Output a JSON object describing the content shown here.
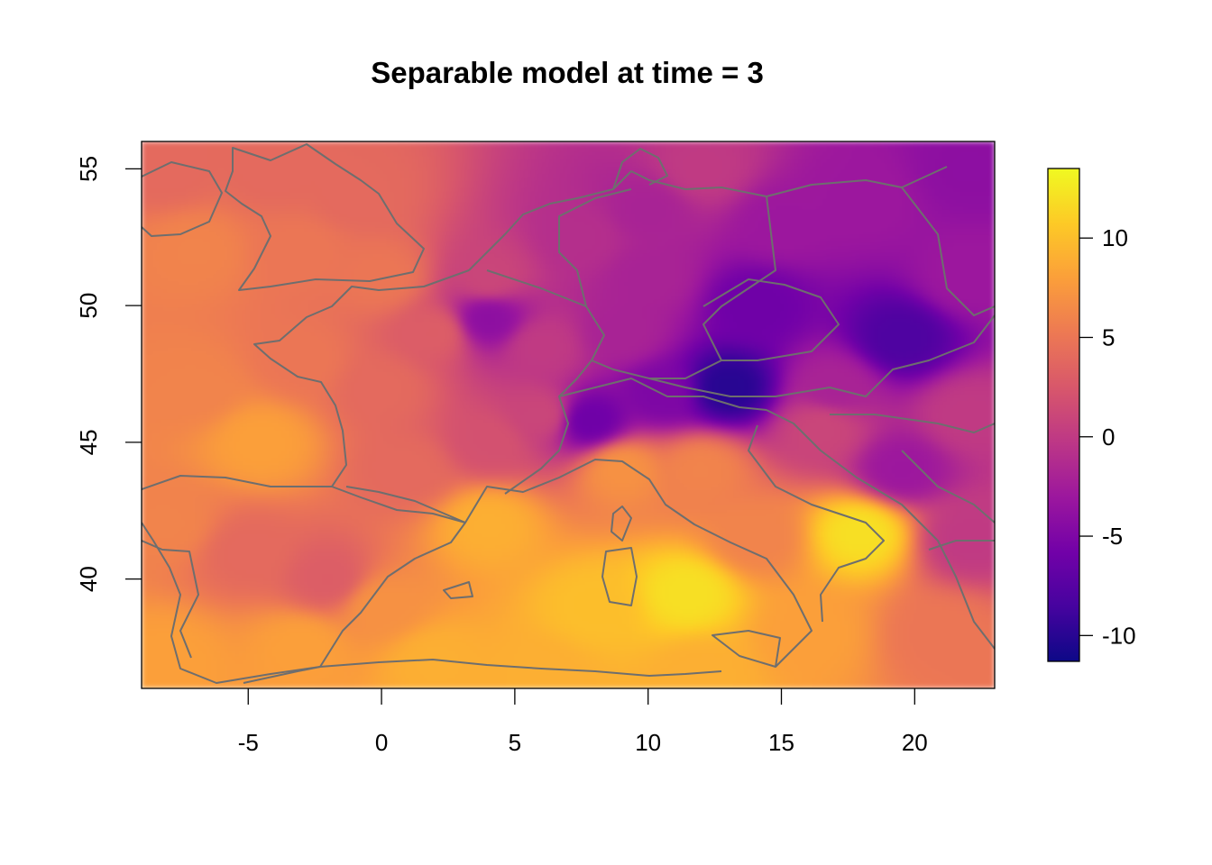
{
  "chart_data": {
    "type": "heatmap",
    "title": "Separable model at time = 3",
    "xlabel": "",
    "ylabel": "",
    "xlim": [
      -9,
      23
    ],
    "ylim": [
      36,
      56
    ],
    "x_ticks": [
      -5,
      0,
      5,
      10,
      15,
      20
    ],
    "y_ticks": [
      40,
      45,
      50,
      55
    ],
    "x_tick_labels": [
      "-5",
      "0",
      "5",
      "10",
      "15",
      "20"
    ],
    "y_tick_labels": [
      "40",
      "45",
      "50",
      "55"
    ],
    "grid": false,
    "colorbar": {
      "palette": "plasma",
      "placement": "right",
      "range": [
        -11.3,
        13.5
      ],
      "ticks": [
        -10,
        -5,
        0,
        5,
        10
      ],
      "tick_labels": [
        "-10",
        "-5",
        "0",
        "5",
        "10"
      ],
      "stops": [
        "#0d0887",
        "#46039f",
        "#7201a8",
        "#9c179e",
        "#bd3786",
        "#d8576b",
        "#ed7953",
        "#fb9f3a",
        "#fdca26",
        "#f0f921"
      ]
    },
    "anchors": [
      {
        "lon": -8,
        "lat": 55,
        "value": 4
      },
      {
        "lon": -4,
        "lat": 55,
        "value": 4
      },
      {
        "lon": -1,
        "lat": 54,
        "value": 4
      },
      {
        "lon": -3,
        "lat": 52,
        "value": 5
      },
      {
        "lon": -7,
        "lat": 52,
        "value": 6
      },
      {
        "lon": 0,
        "lat": 51,
        "value": 5
      },
      {
        "lon": 2,
        "lat": 49,
        "value": 3
      },
      {
        "lon": 4,
        "lat": 51,
        "value": 1
      },
      {
        "lon": 4,
        "lat": 49.5,
        "value": -4
      },
      {
        "lon": 6,
        "lat": 48.5,
        "value": 0
      },
      {
        "lon": 7.5,
        "lat": 52.5,
        "value": -1
      },
      {
        "lon": 10,
        "lat": 53.5,
        "value": -2
      },
      {
        "lon": 10,
        "lat": 51,
        "value": -2
      },
      {
        "lon": 9,
        "lat": 49,
        "value": -2
      },
      {
        "lon": 12,
        "lat": 55,
        "value": 0
      },
      {
        "lon": 15,
        "lat": 53,
        "value": -3
      },
      {
        "lon": 18,
        "lat": 54,
        "value": -3
      },
      {
        "lon": 22,
        "lat": 55,
        "value": -4
      },
      {
        "lon": 14,
        "lat": 50,
        "value": -6
      },
      {
        "lon": 19.5,
        "lat": 48.8,
        "value": -8
      },
      {
        "lon": 13,
        "lat": 47,
        "value": -10
      },
      {
        "lon": 10.5,
        "lat": 46.8,
        "value": -5
      },
      {
        "lon": 7.8,
        "lat": 45.8,
        "value": -6
      },
      {
        "lon": 17,
        "lat": 47,
        "value": -2
      },
      {
        "lon": 22,
        "lat": 46,
        "value": 0
      },
      {
        "lon": 19.5,
        "lat": 44,
        "value": -3
      },
      {
        "lon": 22,
        "lat": 41.5,
        "value": 0
      },
      {
        "lon": 21,
        "lat": 38,
        "value": 5
      },
      {
        "lon": 16.5,
        "lat": 45.5,
        "value": 1
      },
      {
        "lon": -7,
        "lat": 47,
        "value": 6
      },
      {
        "lon": -3,
        "lat": 48,
        "value": 5
      },
      {
        "lon": -4.5,
        "lat": 45,
        "value": 8
      },
      {
        "lon": 0,
        "lat": 47,
        "value": 4
      },
      {
        "lon": 1,
        "lat": 44,
        "value": 4
      },
      {
        "lon": 4,
        "lat": 45,
        "value": 2
      },
      {
        "lon": 6,
        "lat": 46,
        "value": 1
      },
      {
        "lon": -8,
        "lat": 42,
        "value": 6
      },
      {
        "lon": -5,
        "lat": 41,
        "value": 4
      },
      {
        "lon": -2,
        "lat": 40,
        "value": 3
      },
      {
        "lon": -3,
        "lat": 37.5,
        "value": 8
      },
      {
        "lon": 0,
        "lat": 39,
        "value": 7
      },
      {
        "lon": 2,
        "lat": 37,
        "value": 9
      },
      {
        "lon": 4,
        "lat": 42,
        "value": 9
      },
      {
        "lon": 8,
        "lat": 39,
        "value": 10
      },
      {
        "lon": 11.5,
        "lat": 39.5,
        "value": 12
      },
      {
        "lon": 9,
        "lat": 44,
        "value": 7
      },
      {
        "lon": 12,
        "lat": 44,
        "value": 6
      },
      {
        "lon": 14,
        "lat": 41.5,
        "value": 6
      },
      {
        "lon": 18,
        "lat": 41.7,
        "value": 12
      },
      {
        "lon": 16,
        "lat": 38,
        "value": 8
      },
      {
        "lon": 12,
        "lat": 36.5,
        "value": 9
      },
      {
        "lon": 6,
        "lat": 36.5,
        "value": 9
      },
      {
        "lon": -8,
        "lat": 37,
        "value": 8
      },
      {
        "lon": 22,
        "lat": 51,
        "value": -3
      }
    ]
  }
}
